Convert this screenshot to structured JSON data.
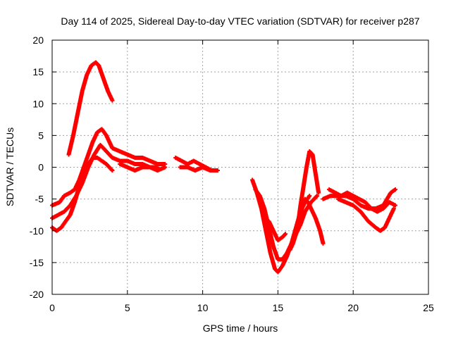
{
  "colors": {
    "series": "#ff0000",
    "grid": "#a0a0a0",
    "frame": "#000000",
    "background": "#ffffff"
  },
  "chart_data": {
    "type": "scatter",
    "marker": "plus",
    "title": "Day 114 of 2025, Sidereal Day-to-day VTEC variation (SDTVAR) for receiver p287",
    "xlabel": "GPS time / hours",
    "ylabel": "SDTVAR / TECUs",
    "xlim": [
      0,
      25
    ],
    "ylim": [
      -20,
      20
    ],
    "xticks": [
      0,
      5,
      10,
      15,
      20,
      25
    ],
    "yticks": [
      -20,
      -15,
      -10,
      -5,
      0,
      5,
      10,
      15,
      20
    ],
    "grid": true,
    "legend": "none",
    "series": [
      {
        "name": "arc-peak",
        "x": [
          1.1,
          1.4,
          1.7,
          2.0,
          2.3,
          2.6,
          2.9,
          3.1,
          3.4,
          3.7,
          4.0
        ],
        "y": [
          2.0,
          5.0,
          8.5,
          12.0,
          14.5,
          16.0,
          16.5,
          16.0,
          14.0,
          12.0,
          10.5
        ]
      },
      {
        "name": "arc-morning-upper",
        "x": [
          0.0,
          0.5,
          0.8,
          1.2,
          1.5,
          1.8,
          2.1,
          2.4,
          2.7,
          3.0,
          3.3,
          3.6,
          4.0,
          4.5,
          5.0,
          5.5,
          6.0,
          6.5,
          7.0,
          7.5
        ],
        "y": [
          -6.0,
          -5.5,
          -4.5,
          -4.0,
          -3.5,
          -2.0,
          0.0,
          2.0,
          4.0,
          5.5,
          6.0,
          5.0,
          3.0,
          2.5,
          2.0,
          1.5,
          1.5,
          1.0,
          0.5,
          0.5
        ]
      },
      {
        "name": "arc-morning-middle",
        "x": [
          0.0,
          0.4,
          0.8,
          1.2,
          1.6,
          2.0,
          2.4,
          2.8,
          3.2,
          3.6,
          4.0,
          4.5,
          5.0,
          5.5,
          6.0,
          6.5,
          7.0
        ],
        "y": [
          -8.0,
          -7.5,
          -7.0,
          -6.0,
          -4.5,
          -2.5,
          0.0,
          2.0,
          3.5,
          2.5,
          1.5,
          1.0,
          1.0,
          0.5,
          0.5,
          0.0,
          0.0
        ]
      },
      {
        "name": "arc-morning-lower",
        "x": [
          0.0,
          0.3,
          0.6,
          0.9,
          1.2,
          1.5,
          1.8,
          2.1,
          2.4,
          2.7,
          3.0,
          3.3,
          3.6,
          4.0
        ],
        "y": [
          -9.5,
          -10.0,
          -9.5,
          -8.5,
          -7.5,
          -5.5,
          -3.0,
          -1.0,
          0.5,
          1.5,
          1.5,
          1.0,
          0.5,
          -0.5
        ]
      },
      {
        "name": "arc-afternoon-cluster",
        "x": [
          4.5,
          5.0,
          5.5,
          6.0,
          6.5,
          7.0,
          7.5
        ],
        "y": [
          0.5,
          0.0,
          -0.5,
          0.0,
          0.0,
          -0.5,
          0.0
        ]
      },
      {
        "name": "arc-evening-a",
        "x": [
          8.2,
          8.6,
          9.0,
          9.4,
          9.8,
          10.2,
          10.6,
          11.0
        ],
        "y": [
          1.5,
          1.0,
          0.5,
          1.0,
          0.5,
          0.0,
          -0.5,
          -0.5
        ]
      },
      {
        "name": "arc-evening-b",
        "x": [
          8.5,
          9.0,
          9.5,
          10.0,
          10.5,
          10.8
        ],
        "y": [
          0.0,
          0.0,
          -0.5,
          0.0,
          -0.5,
          -0.5
        ]
      },
      {
        "name": "arc-night-deep",
        "x": [
          13.3,
          13.6,
          13.9,
          14.2,
          14.5,
          14.8,
          15.0,
          15.3,
          15.6,
          15.9,
          16.2,
          16.5,
          16.8,
          17.1
        ],
        "y": [
          -2.0,
          -4.0,
          -6.5,
          -10.0,
          -13.5,
          -16.0,
          -16.5,
          -15.5,
          -14.0,
          -12.0,
          -9.5,
          -7.0,
          -5.5,
          -4.5
        ]
      },
      {
        "name": "arc-night-b",
        "x": [
          13.5,
          13.8,
          14.1,
          14.4,
          14.7,
          15.0,
          15.3,
          15.6,
          15.9,
          16.2,
          16.5,
          16.8,
          17.2,
          17.6
        ],
        "y": [
          -3.5,
          -4.5,
          -6.5,
          -9.5,
          -12.5,
          -14.5,
          -14.5,
          -13.5,
          -12.0,
          -10.5,
          -9.0,
          -7.0,
          -5.5,
          -4.5
        ]
      },
      {
        "name": "arc-night-c",
        "x": [
          14.4,
          14.7,
          15.0,
          15.3,
          15.5
        ],
        "y": [
          -8.5,
          -10.0,
          -11.5,
          -11.0,
          -10.5
        ]
      },
      {
        "name": "arc-night-d",
        "x": [
          15.8,
          16.0,
          16.2,
          16.4,
          16.6,
          16.8,
          17.0,
          17.2,
          17.5,
          17.8,
          18.0
        ],
        "y": [
          -13.0,
          -12.0,
          -10.5,
          -8.5,
          -6.5,
          -5.0,
          -5.5,
          -6.5,
          -8.0,
          -10.0,
          -12.0
        ]
      },
      {
        "name": "arc-night-rise",
        "x": [
          16.3,
          16.5,
          16.7,
          16.9,
          17.1,
          17.3,
          17.5,
          17.7
        ],
        "y": [
          -9.5,
          -6.0,
          -3.0,
          0.0,
          2.5,
          2.0,
          -1.0,
          -4.0
        ]
      },
      {
        "name": "arc-predawn",
        "x": [
          18.0,
          18.5,
          19.0,
          19.5,
          20.0,
          20.5,
          21.0,
          21.5,
          22.0,
          22.5,
          22.8
        ],
        "y": [
          -5.0,
          -4.5,
          -4.5,
          -4.5,
          -5.0,
          -6.0,
          -6.5,
          -6.5,
          -6.0,
          -4.0,
          -3.5
        ]
      },
      {
        "name": "arc-predawn-lower",
        "x": [
          19.0,
          19.5,
          20.0,
          20.5,
          21.0,
          21.5,
          21.8,
          22.1,
          22.4,
          22.7
        ],
        "y": [
          -5.0,
          -5.5,
          -6.0,
          -7.0,
          -8.5,
          -9.5,
          -10.0,
          -9.5,
          -8.0,
          -6.5
        ]
      },
      {
        "name": "arc-predawn-mid",
        "x": [
          18.4,
          18.8,
          19.2,
          19.6,
          20.0,
          20.4,
          20.8,
          21.2,
          21.6,
          22.0,
          22.4,
          22.8
        ],
        "y": [
          -3.5,
          -4.0,
          -4.5,
          -4.0,
          -4.5,
          -5.0,
          -5.5,
          -6.5,
          -7.0,
          -6.5,
          -5.5,
          -6.0
        ]
      }
    ]
  }
}
